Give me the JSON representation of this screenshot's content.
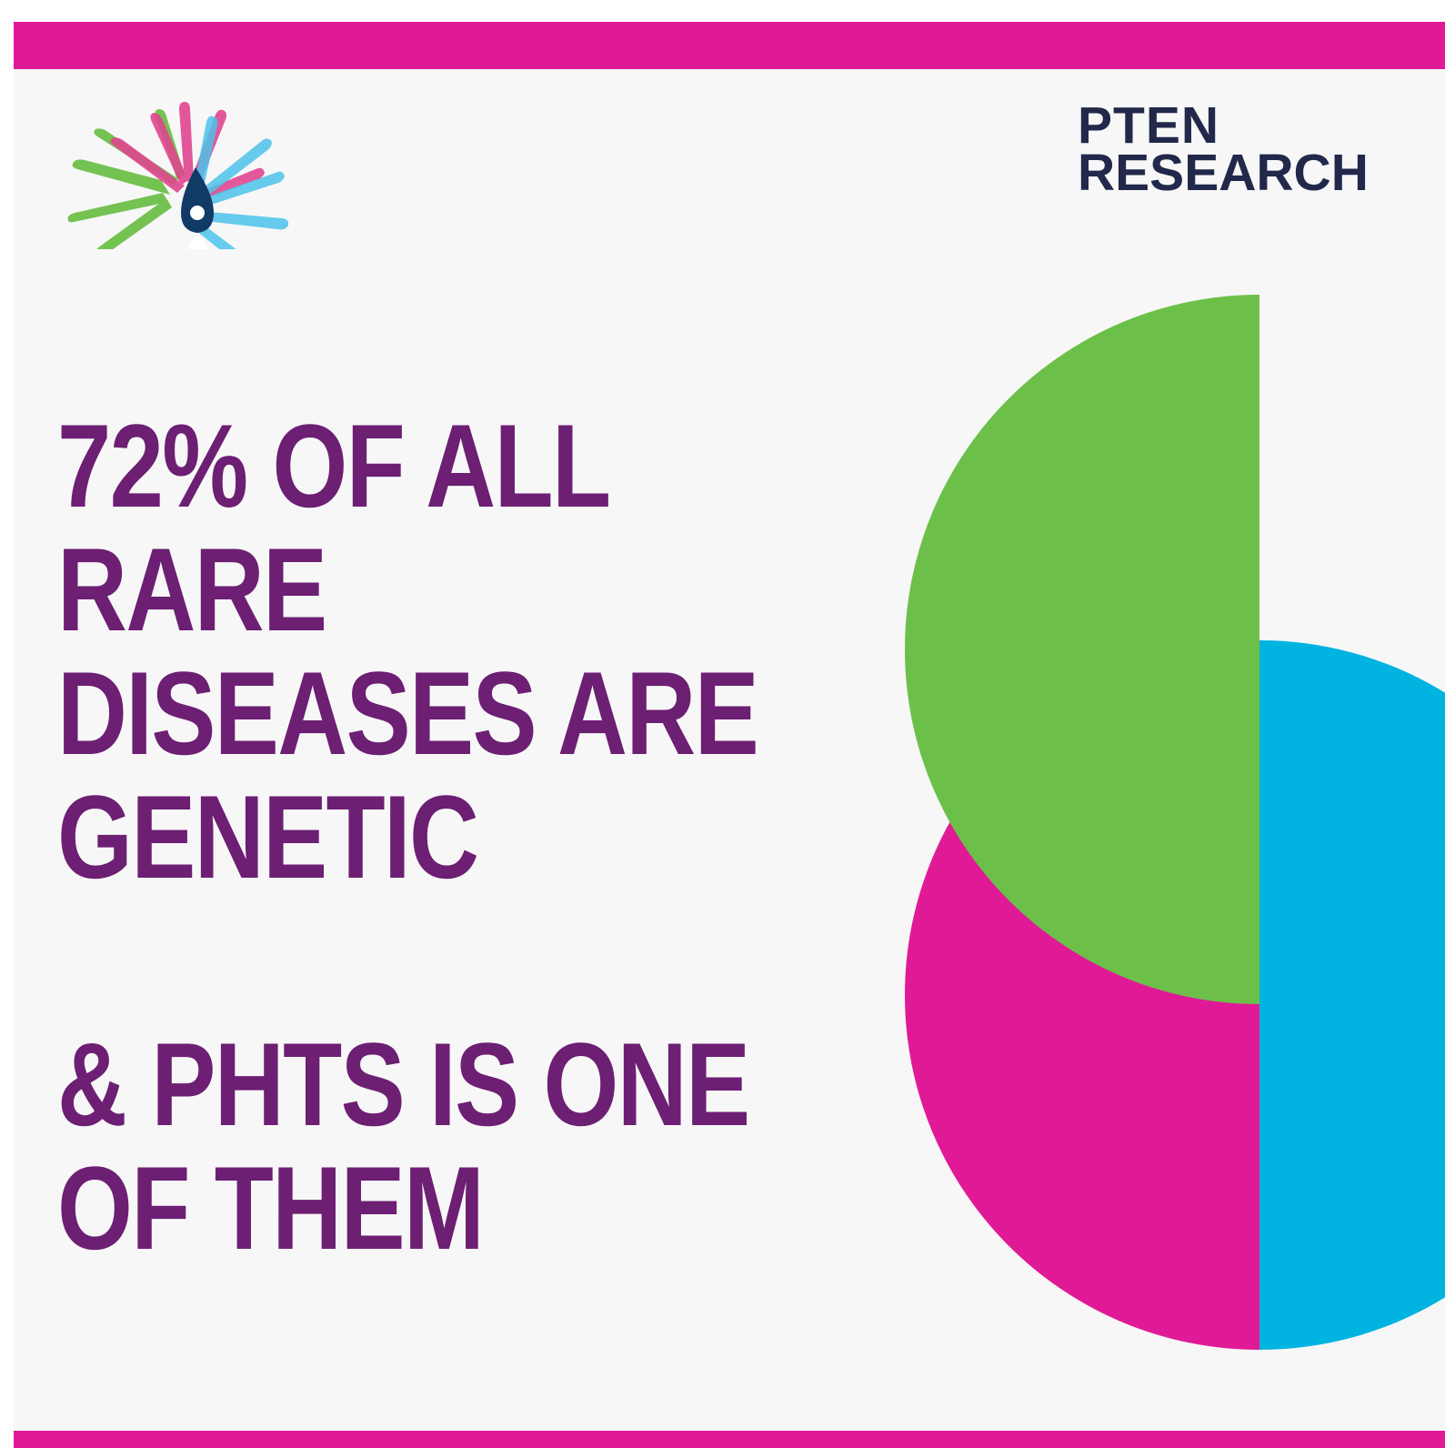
{
  "colors": {
    "background": "#f7f7f7",
    "magenta": "#e01a96",
    "purple": "#6c1f73",
    "green": "#6cc04a",
    "blue": "#00b3e0",
    "navy": "#22284a",
    "orange": "#f39c1e"
  },
  "logo_left": {
    "icon": "hands-logo-icon"
  },
  "logo_right": {
    "line1": "PTEN",
    "line2": "RESEARCH"
  },
  "headline": {
    "line1": "72% OF ALL",
    "line2": "RARE",
    "line3": "DISEASES ARE",
    "line4": "GENETIC",
    "line5": "& PHTS IS ONE",
    "line6": "OF THEM"
  }
}
